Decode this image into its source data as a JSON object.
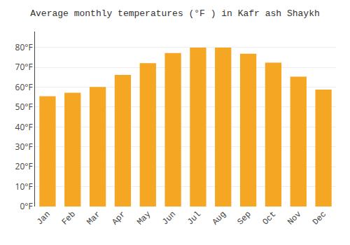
{
  "chart_data": {
    "type": "bar",
    "title": "Average monthly temperatures (°F ) in Kafr ash Shaykh",
    "categories": [
      "Jan",
      "Feb",
      "Mar",
      "Apr",
      "May",
      "Jun",
      "Jul",
      "Aug",
      "Sep",
      "Oct",
      "Nov",
      "Dec"
    ],
    "values": [
      55.4,
      57.2,
      60.1,
      66.2,
      72.1,
      77.2,
      79.9,
      79.9,
      76.8,
      72.3,
      65.3,
      58.8
    ],
    "color": "#F5A623",
    "ylim": [
      0,
      88
    ],
    "yticks": [
      {
        "value": 0,
        "label": "0°F"
      },
      {
        "value": 10,
        "label": "10°F"
      },
      {
        "value": 20,
        "label": "20°F"
      },
      {
        "value": 30,
        "label": "30°F"
      },
      {
        "value": 40,
        "label": "40°F"
      },
      {
        "value": 50,
        "label": "50°F"
      },
      {
        "value": 60,
        "label": "60°F"
      },
      {
        "value": 70,
        "label": "70°F"
      },
      {
        "value": 80,
        "label": "80°F"
      }
    ],
    "grid": true
  }
}
